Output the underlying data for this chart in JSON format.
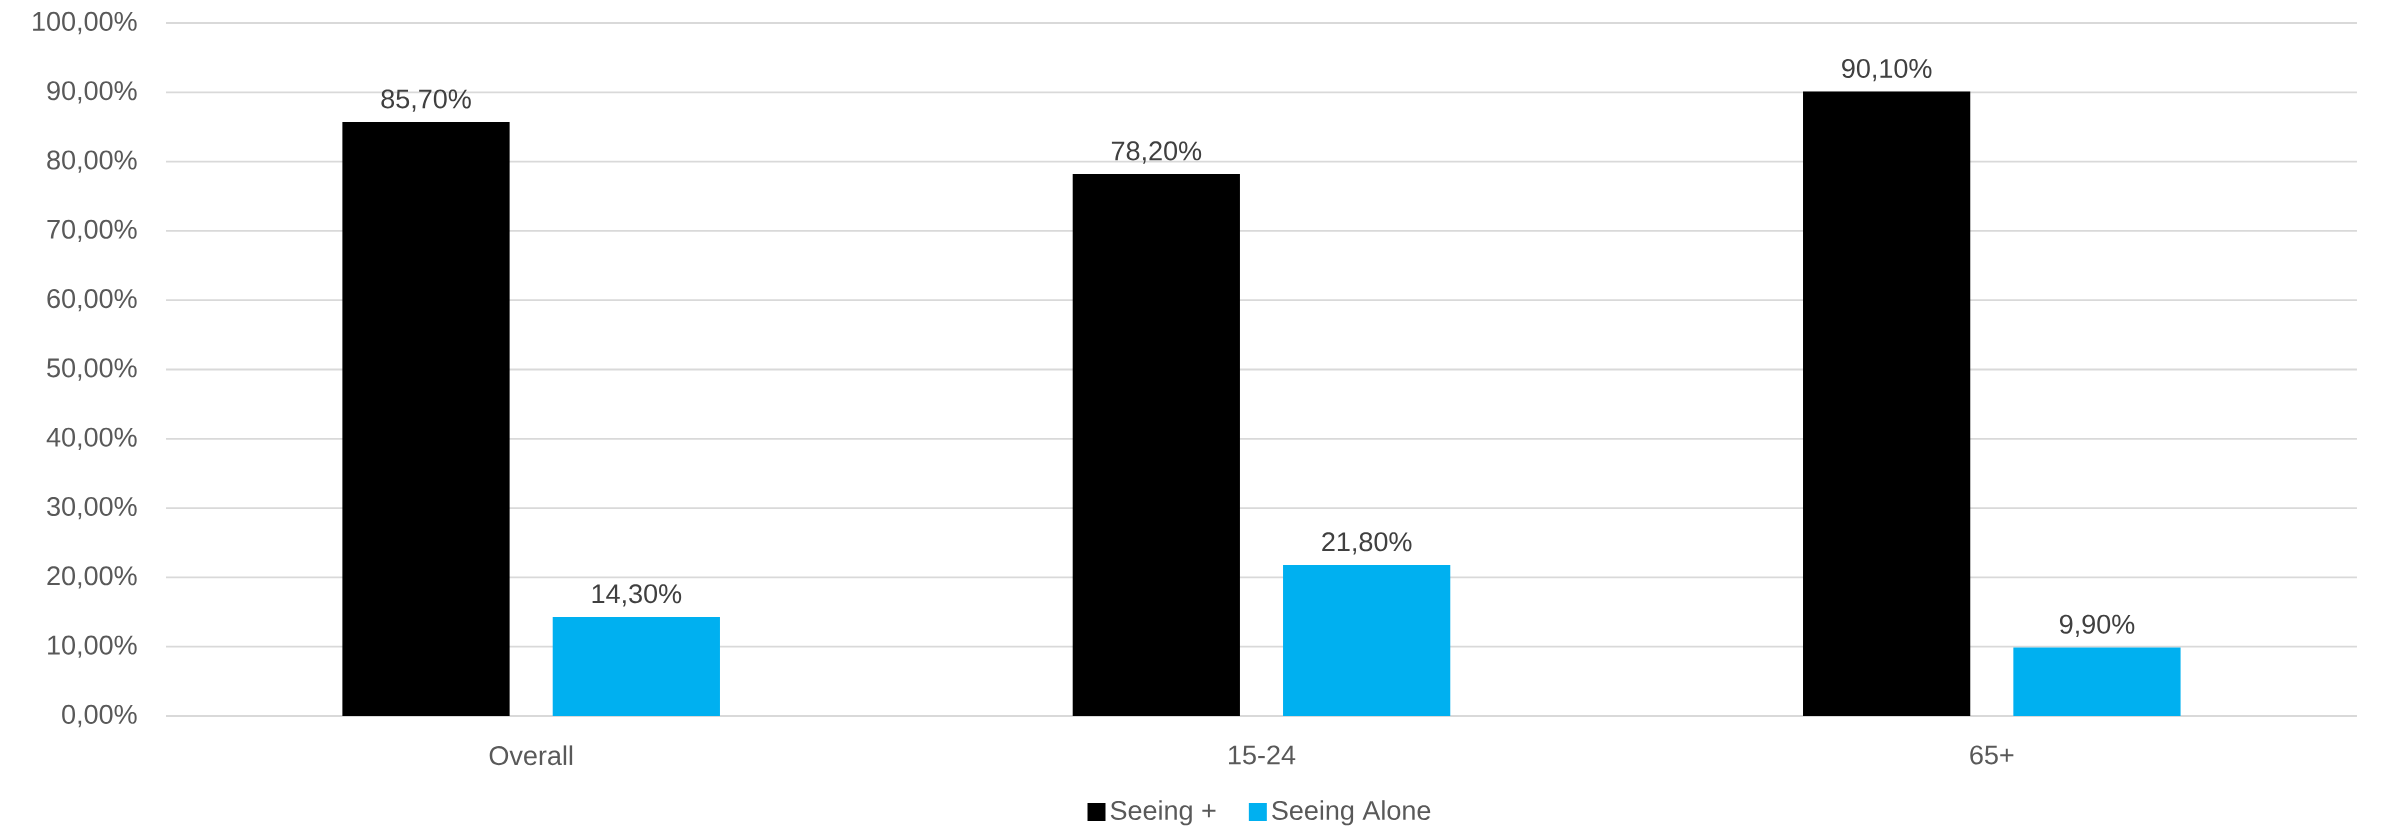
{
  "chart_data": {
    "type": "bar",
    "categories": [
      "Overall",
      "15-24",
      "65+"
    ],
    "series": [
      {
        "name": "Seeing +",
        "color": "#000000",
        "values": [
          85.7,
          78.2,
          90.1
        ],
        "value_labels": [
          "85,70%",
          "78,20%",
          "90,10%"
        ]
      },
      {
        "name": "Seeing Alone",
        "color": "#00b0f0",
        "values": [
          14.3,
          21.8,
          9.9
        ],
        "value_labels": [
          "14,30%",
          "21,80%",
          "9,90%"
        ]
      }
    ],
    "ylim": [
      0,
      100
    ],
    "yticks": [
      {
        "value": 0,
        "label": "0,00%"
      },
      {
        "value": 10,
        "label": "10,00%"
      },
      {
        "value": 20,
        "label": "20,00%"
      },
      {
        "value": 30,
        "label": "30,00%"
      },
      {
        "value": 40,
        "label": "40,00%"
      },
      {
        "value": 50,
        "label": "50,00%"
      },
      {
        "value": 60,
        "label": "60,00%"
      },
      {
        "value": 70,
        "label": "70,00%"
      },
      {
        "value": 80,
        "label": "80,00%"
      },
      {
        "value": 90,
        "label": "90,00%"
      },
      {
        "value": 100,
        "label": "100,00%"
      }
    ],
    "grid": "y",
    "legend": "bottom"
  }
}
